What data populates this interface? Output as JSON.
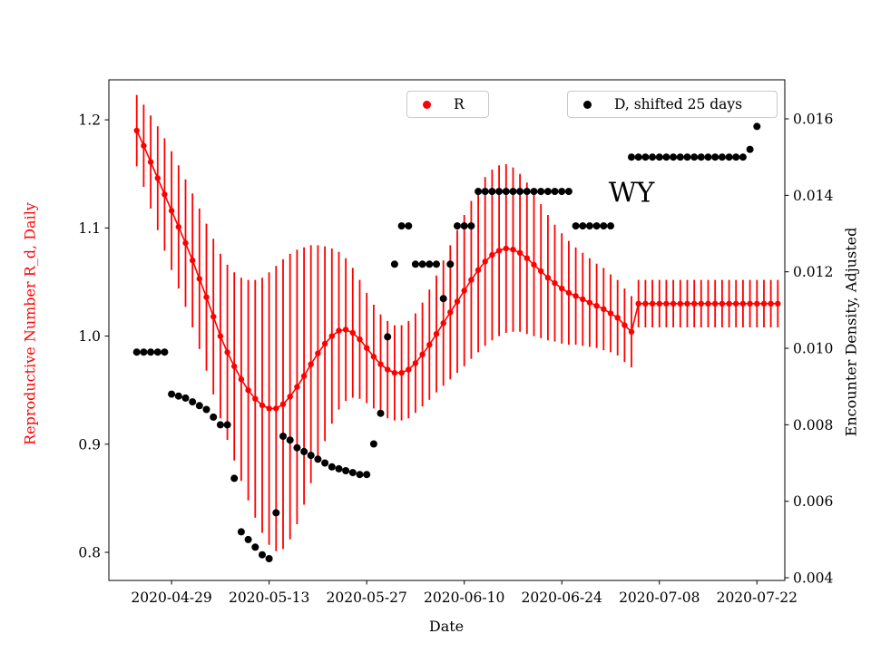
{
  "chart_data": {
    "type": "scatter",
    "title": "",
    "xlabel": "Date",
    "grid": false,
    "legend_position": "top inside plot, two boxes",
    "xlim": [
      "2020-04-20",
      "2020-07-26"
    ],
    "x_ticks": [
      "2020-04-29",
      "2020-05-13",
      "2020-05-27",
      "2020-06-10",
      "2020-06-24",
      "2020-07-08",
      "2020-07-22"
    ],
    "left_axis": {
      "label": "Reproductive Number R_d, Daily",
      "color": "#ff0000",
      "ticks": [
        0.8,
        0.9,
        1.0,
        1.1,
        1.2
      ],
      "lim": [
        0.774,
        1.237
      ]
    },
    "right_axis": {
      "label": "Encounter Density, Adjusted",
      "color": "#000000",
      "ticks": [
        0.004,
        0.006,
        0.008,
        0.01,
        0.012,
        0.014,
        0.016
      ],
      "lim": [
        0.00393,
        0.01702
      ]
    },
    "annotation": {
      "text": "WY",
      "date": "2020-07-04",
      "value": 1.132
    },
    "series": [
      {
        "name": "R",
        "axis": "left",
        "color": "#ff0000",
        "marker": "circle",
        "start_date": "2020-04-24",
        "values": [
          1.19,
          1.176,
          1.161,
          1.146,
          1.131,
          1.116,
          1.101,
          1.086,
          1.07,
          1.053,
          1.036,
          1.018,
          1.0,
          0.985,
          0.972,
          0.96,
          0.95,
          0.942,
          0.936,
          0.933,
          0.933,
          0.937,
          0.944,
          0.953,
          0.963,
          0.974,
          0.984,
          0.993,
          1.0,
          1.005,
          1.006,
          1.003,
          0.997,
          0.989,
          0.981,
          0.974,
          0.969,
          0.966,
          0.966,
          0.969,
          0.975,
          0.983,
          0.992,
          1.002,
          1.012,
          1.022,
          1.032,
          1.042,
          1.052,
          1.061,
          1.069,
          1.075,
          1.079,
          1.081,
          1.08,
          1.077,
          1.072,
          1.066,
          1.06,
          1.054,
          1.049,
          1.044,
          1.04,
          1.037,
          1.034,
          1.031,
          1.028,
          1.025,
          1.021,
          1.017,
          1.01,
          1.004,
          1.03,
          1.03,
          1.03,
          1.03,
          1.03,
          1.03,
          1.03,
          1.03,
          1.03,
          1.03,
          1.03,
          1.03,
          1.03,
          1.03,
          1.03,
          1.03,
          1.03,
          1.03,
          1.03,
          1.03,
          1.03
        ],
        "errors": [
          0.033,
          0.038,
          0.043,
          0.048,
          0.052,
          0.055,
          0.057,
          0.059,
          0.062,
          0.065,
          0.068,
          0.072,
          0.076,
          0.081,
          0.087,
          0.094,
          0.102,
          0.11,
          0.118,
          0.126,
          0.132,
          0.134,
          0.132,
          0.127,
          0.119,
          0.11,
          0.1,
          0.09,
          0.081,
          0.073,
          0.066,
          0.06,
          0.055,
          0.051,
          0.048,
          0.046,
          0.045,
          0.044,
          0.044,
          0.045,
          0.046,
          0.048,
          0.051,
          0.054,
          0.058,
          0.062,
          0.066,
          0.07,
          0.073,
          0.076,
          0.078,
          0.079,
          0.079,
          0.078,
          0.076,
          0.073,
          0.07,
          0.066,
          0.062,
          0.058,
          0.054,
          0.051,
          0.048,
          0.045,
          0.043,
          0.041,
          0.039,
          0.038,
          0.036,
          0.035,
          0.034,
          0.033,
          0.022,
          0.022,
          0.022,
          0.022,
          0.022,
          0.022,
          0.022,
          0.022,
          0.022,
          0.022,
          0.022,
          0.022,
          0.022,
          0.022,
          0.022,
          0.022,
          0.022,
          0.022,
          0.022,
          0.022,
          0.022
        ]
      },
      {
        "name": "D, shifted 25 days",
        "axis": "right",
        "color": "#000000",
        "marker": "circle",
        "start_date": "2020-04-24",
        "values": [
          0.0099,
          0.0099,
          0.0099,
          0.0099,
          0.0099,
          0.0088,
          0.00875,
          0.0087,
          0.0086,
          0.0085,
          0.0084,
          0.0082,
          0.008,
          0.008,
          0.0066,
          0.0052,
          0.005,
          0.0048,
          0.0046,
          0.0045,
          0.0057,
          0.0077,
          0.0076,
          0.0074,
          0.0073,
          0.0072,
          0.0071,
          0.007,
          0.0069,
          0.00685,
          0.0068,
          0.00675,
          0.0067,
          0.0067,
          0.0075,
          0.0083,
          0.0103,
          0.0122,
          0.0132,
          0.0132,
          0.0122,
          0.0122,
          0.0122,
          0.0122,
          0.0113,
          0.0122,
          0.0132,
          0.0132,
          0.0132,
          0.0141,
          0.0141,
          0.0141,
          0.0141,
          0.0141,
          0.0141,
          0.0141,
          0.0141,
          0.0141,
          0.0141,
          0.0141,
          0.0141,
          0.0141,
          0.0141,
          0.0132,
          0.0132,
          0.0132,
          0.0132,
          0.0132,
          0.0132,
          null,
          null,
          0.015,
          0.015,
          0.015,
          0.015,
          0.015,
          0.015,
          0.015,
          0.015,
          0.015,
          0.015,
          0.015,
          0.015,
          0.015,
          0.015,
          0.015,
          0.015,
          0.015,
          0.0152,
          0.0158,
          null,
          null
        ]
      }
    ]
  }
}
